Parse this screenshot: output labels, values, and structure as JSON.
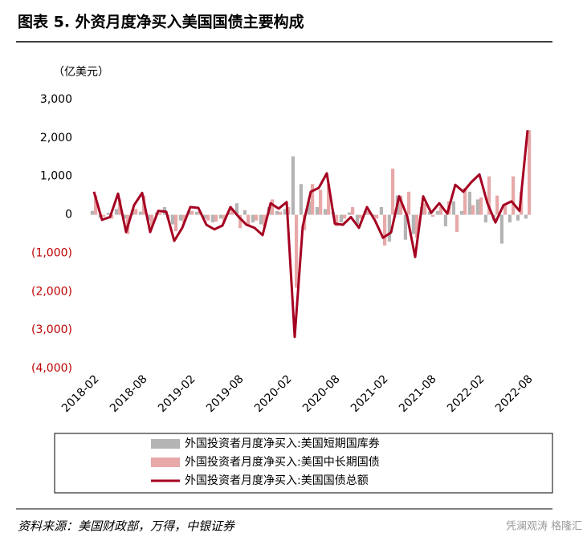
{
  "chart_data": {
    "type": "bar-line",
    "title": "图表 5. 外资月度净买入美国国债主要构成",
    "unit_label": "（亿美元）",
    "source": "资料来源：美国财政部，万得，中银证券",
    "watermark": "凭澜观涛 格隆汇",
    "categories": [
      "2018-02",
      null,
      null,
      null,
      null,
      null,
      "2018-08",
      null,
      null,
      null,
      null,
      null,
      "2019-02",
      null,
      null,
      null,
      null,
      null,
      "2019-08",
      null,
      null,
      null,
      null,
      null,
      "2020-02",
      null,
      null,
      null,
      null,
      null,
      "2020-08",
      null,
      null,
      null,
      null,
      null,
      "2021-02",
      null,
      null,
      null,
      null,
      null,
      "2021-08",
      null,
      null,
      null,
      null,
      null,
      "2022-02",
      null,
      null,
      null,
      null,
      null,
      "2022-08"
    ],
    "series": [
      {
        "name": "外国投资者月度净买入:美国短期国库券",
        "kind": "bar",
        "color": "#b4b4b4",
        "values": [
          100,
          -80,
          50,
          150,
          -100,
          120,
          80,
          -150,
          60,
          200,
          -250,
          -150,
          100,
          80,
          -100,
          -200,
          -100,
          50,
          300,
          120,
          -200,
          -250,
          200,
          100,
          150,
          1520,
          800,
          350,
          200,
          150,
          80,
          -200,
          60,
          -250,
          100,
          -50,
          200,
          -700,
          500,
          -650,
          -500,
          200,
          80,
          100,
          -300,
          350,
          100,
          600,
          400,
          -200,
          -150,
          -750,
          -200,
          -150,
          -100
        ]
      },
      {
        "name": "外国投资者月度净买入:美国中长期国债",
        "kind": "bar",
        "color": "#e8a8a8",
        "values": [
          500,
          -50,
          -100,
          400,
          -500,
          150,
          500,
          -300,
          50,
          -100,
          -430,
          -200,
          100,
          100,
          -150,
          -180,
          -150,
          150,
          -350,
          -300,
          -150,
          -300,
          400,
          80,
          200,
          -1900,
          -400,
          800,
          650,
          800,
          -300,
          -100,
          200,
          -100,
          100,
          -100,
          -800,
          1200,
          500,
          600,
          -600,
          300,
          -50,
          200,
          350,
          -450,
          700,
          250,
          450,
          1000,
          500,
          250,
          1000,
          600,
          2200
        ]
      },
      {
        "name": "外国投资者月度净买入:美国国债总额",
        "kind": "line",
        "color": "#a50021",
        "values": [
          600,
          -130,
          -60,
          550,
          -450,
          250,
          570,
          -450,
          100,
          80,
          -680,
          -340,
          200,
          180,
          -260,
          -380,
          -280,
          200,
          -50,
          -260,
          -340,
          -530,
          300,
          160,
          330,
          -3180,
          -300,
          600,
          700,
          1080,
          -230,
          -260,
          -60,
          -340,
          200,
          -150,
          -600,
          -460,
          480,
          -30,
          -1100,
          480,
          50,
          300,
          30,
          780,
          600,
          850,
          1050,
          300,
          -200,
          250,
          350,
          100,
          2200
        ]
      }
    ],
    "ylim": [
      -4000,
      3000
    ],
    "yticks": [
      {
        "value": -4000,
        "label": "(4,000)"
      },
      {
        "value": -3000,
        "label": "(3,000)"
      },
      {
        "value": -2000,
        "label": "(2,000)"
      },
      {
        "value": -1000,
        "label": "(1,000)"
      },
      0,
      {
        "value": 1000,
        "label": "1,000"
      },
      {
        "value": 2000,
        "label": "2,000"
      },
      {
        "value": 3000,
        "label": "3,000"
      }
    ],
    "negative_tick_color": "#c00000",
    "grid": false
  }
}
